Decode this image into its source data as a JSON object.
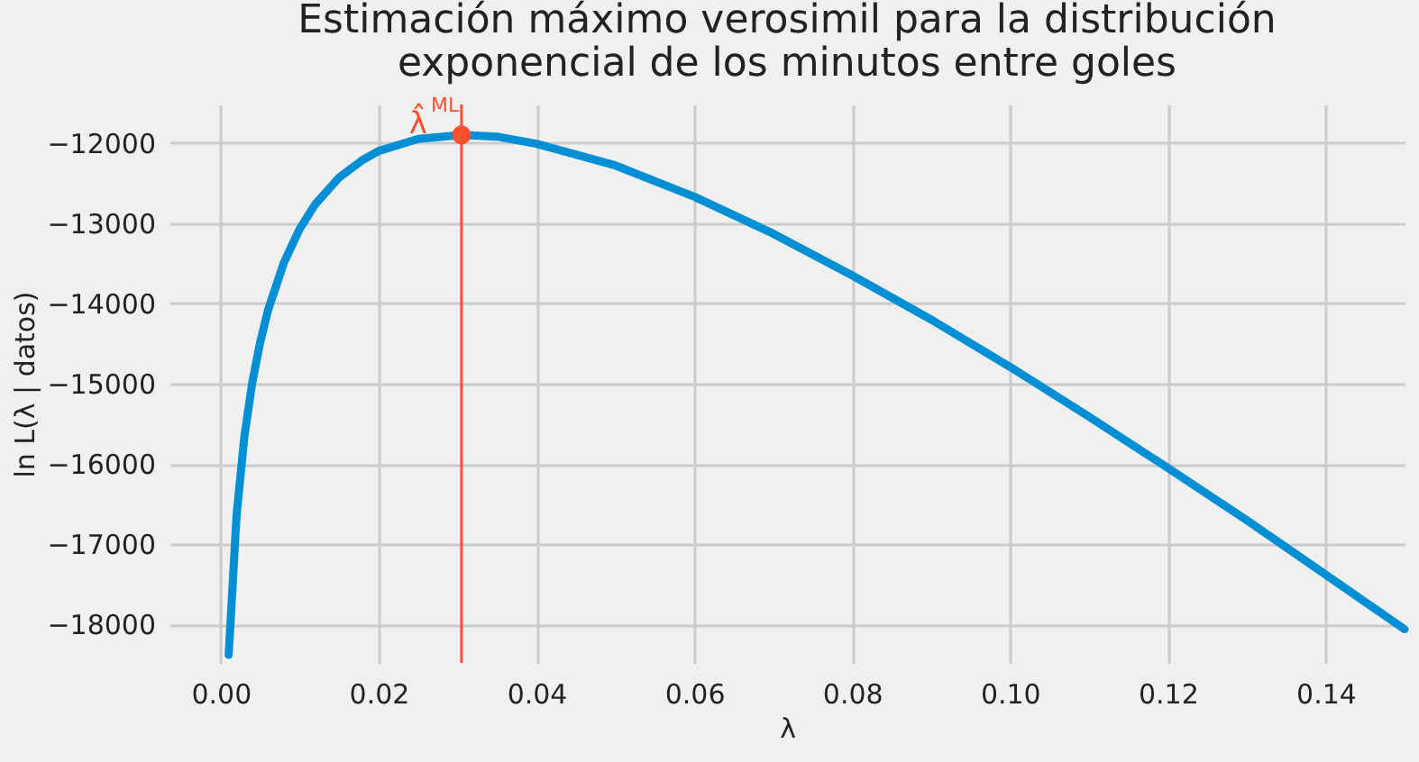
{
  "chart_data": {
    "type": "line",
    "title": "Estimación máximo verosimil para la distribución\nexponencial de los minutos entre goles",
    "xlabel": "λ",
    "ylabel": "ln L(λ | datos)",
    "series": [
      {
        "color": "#008fd5",
        "x": [
          0.001,
          0.002,
          0.003,
          0.004,
          0.005,
          0.006,
          0.008,
          0.01,
          0.012,
          0.015,
          0.018,
          0.02,
          0.025,
          0.0305,
          0.035,
          0.04,
          0.05,
          0.06,
          0.07,
          0.08,
          0.09,
          0.1,
          0.11,
          0.12,
          0.13,
          0.14,
          0.15
        ],
        "values": [
          -18380,
          -16640,
          -15650,
          -14980,
          -14480,
          -14080,
          -13490,
          -13070,
          -12760,
          -12430,
          -12210,
          -12100,
          -11950,
          -11900,
          -11920,
          -12010,
          -12280,
          -12670,
          -13130,
          -13650,
          -14200,
          -14790,
          -15410,
          -16050,
          -16700,
          -17380,
          -18060
        ]
      },
      {
        "type": "scatter",
        "color": "#fc4f30",
        "x": [
          0.0305
        ],
        "values": [
          -11900
        ]
      }
    ],
    "xlim": [
      -0.0065,
      0.15
    ],
    "ylim": [
      -18480,
      -11520
    ],
    "xticks": [
      {
        "value": 0,
        "label": "0.00"
      },
      {
        "value": 0.02,
        "label": "0.02"
      },
      {
        "value": 0.04,
        "label": "0.04"
      },
      {
        "value": 0.06,
        "label": "0.06"
      },
      {
        "value": 0.08,
        "label": "0.08"
      },
      {
        "value": 0.1,
        "label": "0.10"
      },
      {
        "value": 0.12,
        "label": "0.12"
      },
      {
        "value": 0.14,
        "label": "0.14"
      }
    ],
    "yticks": [
      {
        "value": -18000,
        "label": "−18000"
      },
      {
        "value": -17000,
        "label": "−17000"
      },
      {
        "value": -16000,
        "label": "−16000"
      },
      {
        "value": -15000,
        "label": "−15000"
      },
      {
        "value": -14000,
        "label": "−14000"
      },
      {
        "value": -13000,
        "label": "−13000"
      },
      {
        "value": -12000,
        "label": "−12000"
      }
    ],
    "ref_lines": [
      {
        "axis": "x",
        "value": 0.0305,
        "color": "#fc4f30"
      }
    ],
    "annotations": [
      {
        "text": "λ̂$^{ML}$",
        "x": 0.0305,
        "y": -11900
      }
    ],
    "grid": true,
    "line_style": "solid"
  }
}
